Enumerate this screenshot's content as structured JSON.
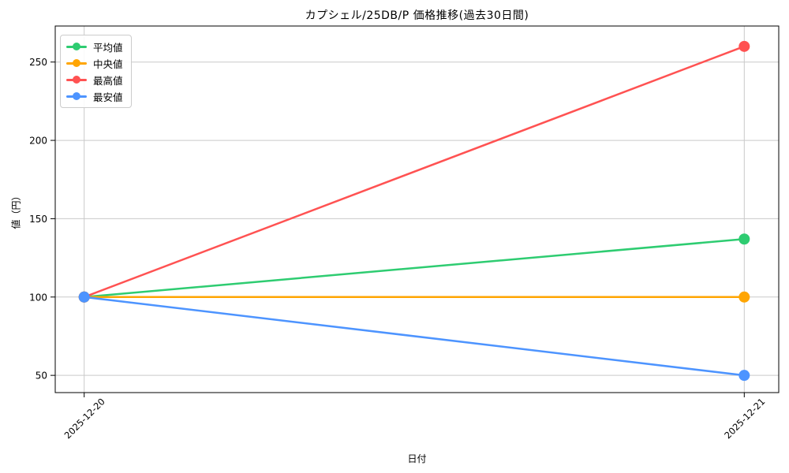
{
  "chart_data": {
    "type": "line",
    "title": "カプシェル/25DB/P 価格推移(過去30日間)",
    "xlabel": "日付",
    "ylabel": "値（円）",
    "x": [
      "2025-12-20",
      "2025-12-21"
    ],
    "series": [
      {
        "name": "平均値",
        "color": "#2ecc71",
        "values": [
          100,
          137
        ]
      },
      {
        "name": "中央値",
        "color": "#ffa502",
        "values": [
          100,
          100
        ]
      },
      {
        "name": "最高値",
        "color": "#ff5252",
        "values": [
          100,
          260
        ]
      },
      {
        "name": "最安値",
        "color": "#4d94ff",
        "values": [
          100,
          50
        ]
      }
    ],
    "yticks": [
      50,
      100,
      150,
      200,
      250
    ],
    "ylim": [
      39,
      273
    ],
    "grid": true,
    "grid_color": "#c9c9c9",
    "spine_color": "#000000",
    "tick_label_color": "#000000",
    "legend_position": "upper-left",
    "x_tick_rotation_deg": 45
  }
}
